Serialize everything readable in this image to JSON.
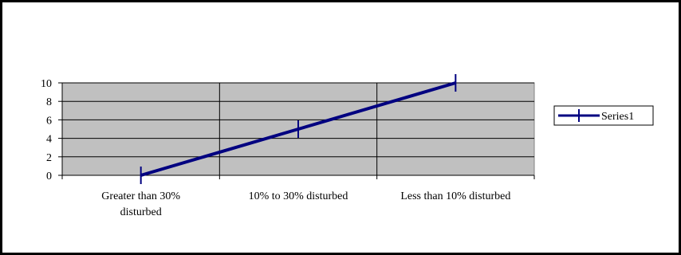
{
  "chart_data": {
    "type": "line",
    "categories": [
      "Greater than 30% disturbed",
      "10% to 30% disturbed",
      "Less than 10% disturbed"
    ],
    "category_lines": [
      [
        "Greater than 30%",
        "disturbed"
      ],
      [
        "10% to 30% disturbed"
      ],
      [
        "Less than 10% disturbed"
      ]
    ],
    "series": [
      {
        "name": "Series1",
        "values": [
          0,
          5,
          10
        ],
        "color": "#000080"
      }
    ],
    "ylim": [
      0,
      10
    ],
    "yticks": [
      0,
      2,
      4,
      6,
      8,
      10
    ],
    "ytick_labels": [
      "0",
      "2",
      "4",
      "6",
      "8",
      "10"
    ],
    "grid": true,
    "plot_background": "#c0c0c0",
    "legend_position": "right"
  }
}
